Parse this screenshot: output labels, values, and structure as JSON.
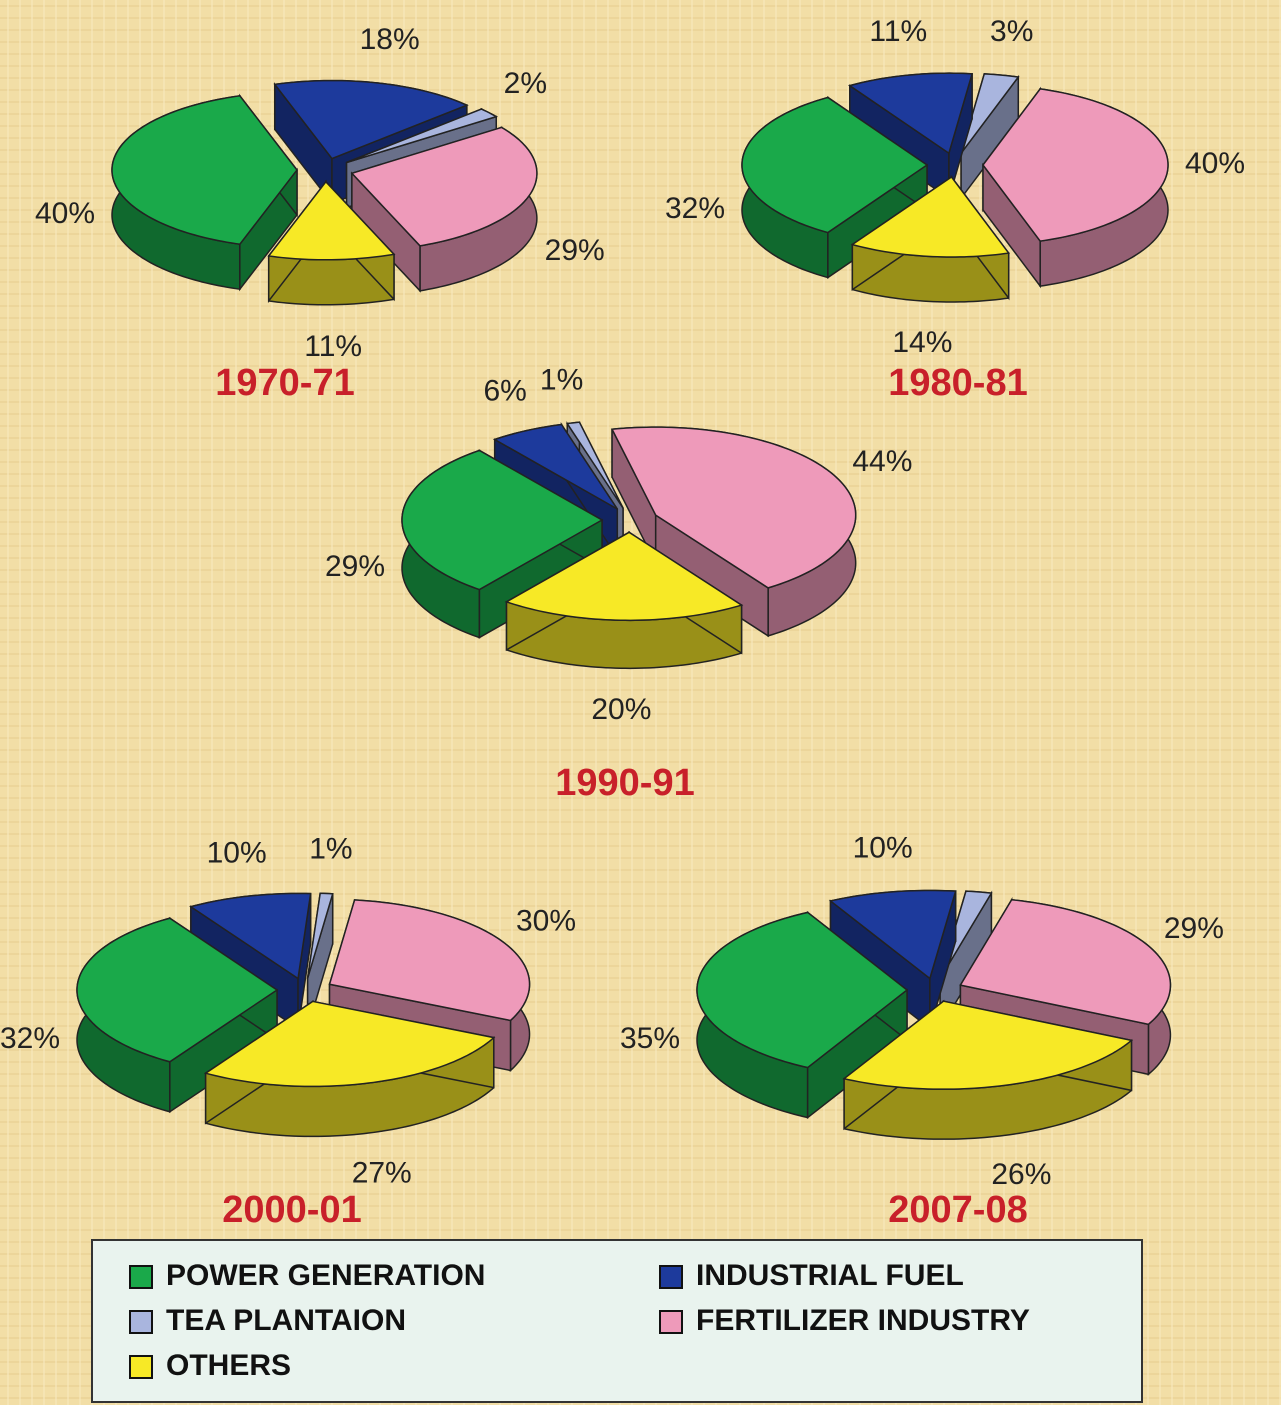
{
  "chart_data": [
    {
      "type": "pie",
      "title": "1970-71",
      "categories": [
        "POWER GENERATION",
        "INDUSTRIAL FUEL",
        "TEA PLANTAION",
        "FERTILIZER INDUSTRY",
        "OTHERS"
      ],
      "colors": [
        "#1aa94a",
        "#1d3a9c",
        "#a9b5de",
        "#ee9aba",
        "#f7e926"
      ],
      "values": [
        40,
        18,
        2,
        29,
        11
      ],
      "value_labels": [
        "40%",
        "18%",
        "2%",
        "29%",
        "11%"
      ]
    },
    {
      "type": "pie",
      "title": "1980-81",
      "categories": [
        "POWER GENERATION",
        "INDUSTRIAL FUEL",
        "TEA PLANTAION",
        "FERTILIZER INDUSTRY",
        "OTHERS"
      ],
      "colors": [
        "#1aa94a",
        "#1d3a9c",
        "#a9b5de",
        "#ee9aba",
        "#f7e926"
      ],
      "values": [
        32,
        11,
        3,
        40,
        14
      ],
      "value_labels": [
        "32%",
        "11%",
        "3%",
        "40%",
        "14%"
      ]
    },
    {
      "type": "pie",
      "title": "1990-91",
      "categories": [
        "POWER GENERATION",
        "INDUSTRIAL FUEL",
        "TEA PLANTAION",
        "FERTILIZER INDUSTRY",
        "OTHERS"
      ],
      "colors": [
        "#1aa94a",
        "#1d3a9c",
        "#a9b5de",
        "#ee9aba",
        "#f7e926"
      ],
      "values": [
        29,
        6,
        1,
        44,
        20
      ],
      "value_labels": [
        "29%",
        "6%",
        "1%",
        "44%",
        "20%"
      ]
    },
    {
      "type": "pie",
      "title": "2000-01",
      "categories": [
        "POWER GENERATION",
        "INDUSTRIAL FUEL",
        "TEA PLANTAION",
        "FERTILIZER INDUSTRY",
        "OTHERS"
      ],
      "colors": [
        "#1aa94a",
        "#1d3a9c",
        "#a9b5de",
        "#ee9aba",
        "#f7e926"
      ],
      "values": [
        32,
        10,
        1,
        30,
        27
      ],
      "value_labels": [
        "32%",
        "10%",
        "1%",
        "30%",
        "27%"
      ]
    },
    {
      "type": "pie",
      "title": "2007-08",
      "categories": [
        "POWER GENERATION",
        "INDUSTRIAL FUEL",
        "TEA PLANTAION",
        "FERTILIZER INDUSTRY",
        "OTHERS"
      ],
      "colors": [
        "#1aa94a",
        "#1d3a9c",
        "#a9b5de",
        "#ee9aba",
        "#f7e926"
      ],
      "values": [
        35,
        10,
        2,
        29,
        26
      ],
      "value_labels": [
        "35%",
        "10%",
        null,
        "29%",
        "26%"
      ]
    }
  ]
}
